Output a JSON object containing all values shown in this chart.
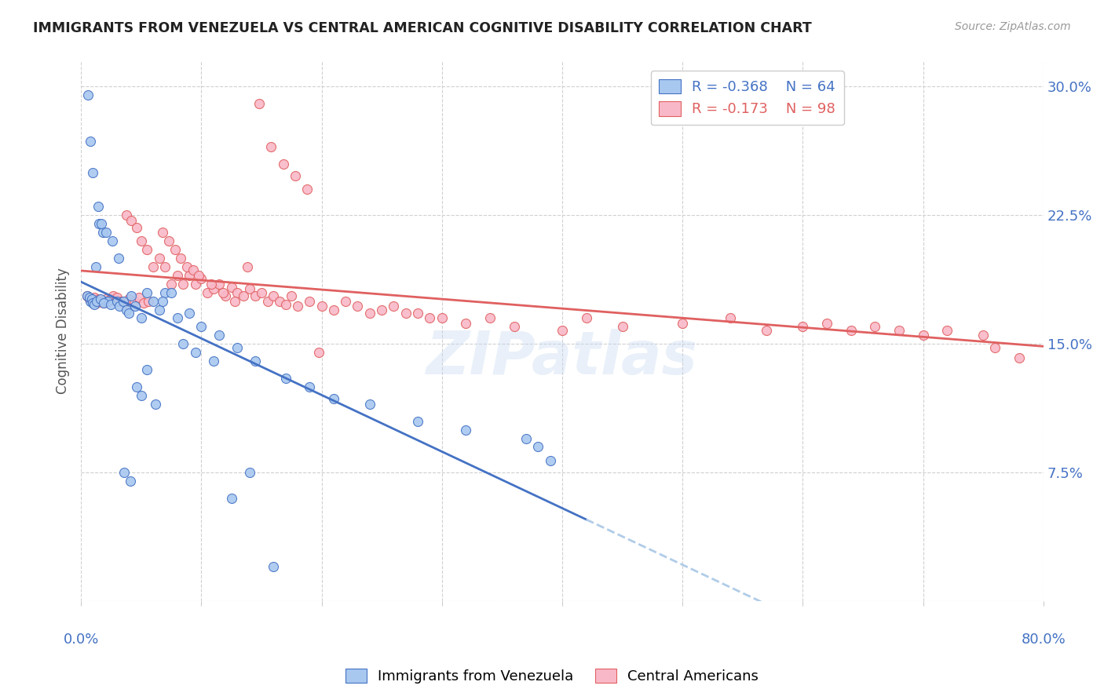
{
  "title": "IMMIGRANTS FROM VENEZUELA VS CENTRAL AMERICAN COGNITIVE DISABILITY CORRELATION CHART",
  "source": "Source: ZipAtlas.com",
  "ylabel": "Cognitive Disability",
  "yticks": [
    0.0,
    0.075,
    0.15,
    0.225,
    0.3
  ],
  "ytick_labels": [
    "",
    "7.5%",
    "15.0%",
    "22.5%",
    "30.0%"
  ],
  "xlim": [
    0.0,
    0.8
  ],
  "ylim": [
    0.0,
    0.315
  ],
  "legend_r1": "R = -0.368",
  "legend_n1": "N = 64",
  "legend_r2": "R = -0.173",
  "legend_n2": "N = 98",
  "color_blue": "#a8c8f0",
  "color_pink": "#f9b8c8",
  "color_blue_line": "#4472c4",
  "color_pink_line": "#e06060",
  "color_blue_dash": "#b0cce8",
  "watermark": "ZIPatlas",
  "scatter_blue_x": [
    0.008,
    0.012,
    0.015,
    0.018,
    0.02,
    0.022,
    0.005,
    0.007,
    0.009,
    0.01,
    0.011,
    0.013,
    0.016,
    0.019,
    0.025,
    0.03,
    0.032,
    0.035,
    0.038,
    0.04,
    0.042,
    0.045,
    0.05,
    0.055,
    0.06,
    0.065,
    0.07,
    0.08,
    0.09,
    0.1,
    0.115,
    0.13,
    0.145,
    0.17,
    0.19,
    0.21,
    0.24,
    0.28,
    0.32,
    0.37,
    0.38,
    0.39,
    0.006,
    0.008,
    0.01,
    0.014,
    0.017,
    0.021,
    0.026,
    0.031,
    0.036,
    0.041,
    0.046,
    0.05,
    0.055,
    0.062,
    0.068,
    0.075,
    0.085,
    0.095,
    0.11,
    0.125,
    0.14,
    0.16
  ],
  "scatter_blue_y": [
    0.175,
    0.195,
    0.22,
    0.215,
    0.175,
    0.175,
    0.178,
    0.177,
    0.176,
    0.174,
    0.173,
    0.175,
    0.176,
    0.174,
    0.173,
    0.175,
    0.172,
    0.175,
    0.17,
    0.168,
    0.178,
    0.172,
    0.165,
    0.18,
    0.175,
    0.17,
    0.18,
    0.165,
    0.168,
    0.16,
    0.155,
    0.148,
    0.14,
    0.13,
    0.125,
    0.118,
    0.115,
    0.105,
    0.1,
    0.095,
    0.09,
    0.082,
    0.295,
    0.268,
    0.25,
    0.23,
    0.22,
    0.215,
    0.21,
    0.2,
    0.075,
    0.07,
    0.125,
    0.12,
    0.135,
    0.115,
    0.175,
    0.18,
    0.15,
    0.145,
    0.14,
    0.06,
    0.075,
    0.02
  ],
  "scatter_pink_x": [
    0.005,
    0.007,
    0.009,
    0.011,
    0.013,
    0.015,
    0.017,
    0.019,
    0.021,
    0.023,
    0.025,
    0.027,
    0.03,
    0.033,
    0.036,
    0.04,
    0.044,
    0.048,
    0.052,
    0.056,
    0.06,
    0.065,
    0.07,
    0.075,
    0.08,
    0.085,
    0.09,
    0.095,
    0.1,
    0.105,
    0.11,
    0.115,
    0.12,
    0.125,
    0.13,
    0.135,
    0.14,
    0.145,
    0.15,
    0.155,
    0.16,
    0.165,
    0.17,
    0.175,
    0.18,
    0.19,
    0.2,
    0.21,
    0.22,
    0.23,
    0.24,
    0.25,
    0.26,
    0.27,
    0.28,
    0.29,
    0.3,
    0.32,
    0.34,
    0.36,
    0.4,
    0.42,
    0.45,
    0.5,
    0.54,
    0.57,
    0.6,
    0.62,
    0.64,
    0.66,
    0.68,
    0.7,
    0.72,
    0.75,
    0.76,
    0.78,
    0.038,
    0.042,
    0.046,
    0.05,
    0.055,
    0.068,
    0.073,
    0.078,
    0.083,
    0.088,
    0.093,
    0.098,
    0.108,
    0.118,
    0.128,
    0.138,
    0.148,
    0.158,
    0.168,
    0.178,
    0.188,
    0.198
  ],
  "scatter_pink_y": [
    0.178,
    0.176,
    0.175,
    0.177,
    0.174,
    0.176,
    0.175,
    0.174,
    0.176,
    0.175,
    0.176,
    0.178,
    0.177,
    0.175,
    0.174,
    0.176,
    0.175,
    0.177,
    0.174,
    0.175,
    0.195,
    0.2,
    0.195,
    0.185,
    0.19,
    0.185,
    0.19,
    0.185,
    0.188,
    0.18,
    0.182,
    0.185,
    0.178,
    0.183,
    0.18,
    0.178,
    0.182,
    0.178,
    0.18,
    0.175,
    0.178,
    0.175,
    0.173,
    0.178,
    0.172,
    0.175,
    0.172,
    0.17,
    0.175,
    0.172,
    0.168,
    0.17,
    0.172,
    0.168,
    0.168,
    0.165,
    0.165,
    0.162,
    0.165,
    0.16,
    0.158,
    0.165,
    0.16,
    0.162,
    0.165,
    0.158,
    0.16,
    0.162,
    0.158,
    0.16,
    0.158,
    0.155,
    0.158,
    0.155,
    0.148,
    0.142,
    0.225,
    0.222,
    0.218,
    0.21,
    0.205,
    0.215,
    0.21,
    0.205,
    0.2,
    0.195,
    0.193,
    0.19,
    0.185,
    0.18,
    0.175,
    0.195,
    0.29,
    0.265,
    0.255,
    0.248,
    0.24,
    0.145
  ]
}
